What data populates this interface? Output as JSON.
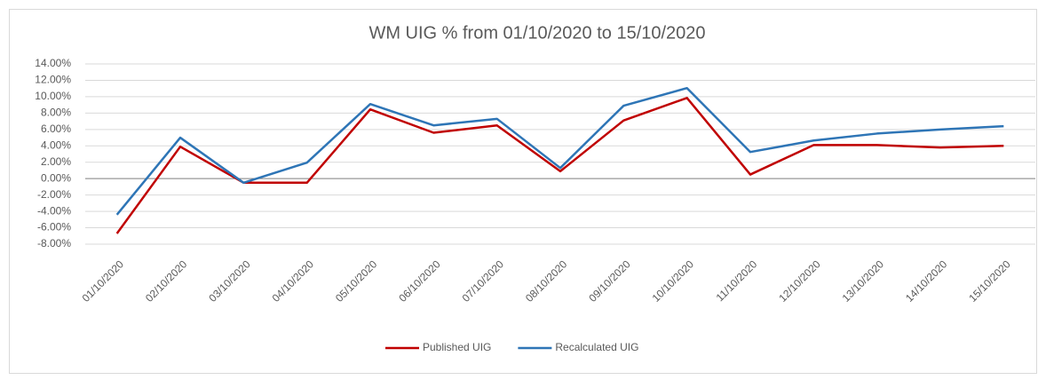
{
  "chart_data": {
    "type": "line",
    "title": "WM UIG % from 01/10/2020 to 15/10/2020",
    "categories": [
      "01/10/2020",
      "02/10/2020",
      "03/10/2020",
      "04/10/2020",
      "05/10/2020",
      "06/10/2020",
      "07/10/2020",
      "08/10/2020",
      "09/10/2020",
      "10/10/2020",
      "11/10/2020",
      "12/10/2020",
      "13/10/2020",
      "14/10/2020",
      "15/10/2020"
    ],
    "series": [
      {
        "name": "Published UIG",
        "color": "#c00000",
        "values": [
          -6.7,
          3.9,
          -0.5,
          -0.5,
          8.45,
          5.6,
          6.5,
          0.9,
          7.1,
          9.85,
          0.5,
          4.1,
          4.1,
          3.8,
          4.0
        ]
      },
      {
        "name": "Recalculated UIG",
        "color": "#2e75b6",
        "values": [
          -4.4,
          5.0,
          -0.5,
          1.95,
          9.1,
          6.5,
          7.3,
          1.3,
          8.9,
          11.05,
          3.25,
          4.65,
          5.5,
          6.0,
          6.4
        ]
      }
    ],
    "ylim": [
      -8,
      14
    ],
    "yticks": [
      {
        "value": -8,
        "label": "-8.00%"
      },
      {
        "value": -6,
        "label": "-6.00%"
      },
      {
        "value": -4,
        "label": "-4.00%"
      },
      {
        "value": -2,
        "label": "-2.00%"
      },
      {
        "value": 0,
        "label": "0.00%"
      },
      {
        "value": 2,
        "label": "2.00%"
      },
      {
        "value": 4,
        "label": "4.00%"
      },
      {
        "value": 6,
        "label": "6.00%"
      },
      {
        "value": 8,
        "label": "8.00%"
      },
      {
        "value": 10,
        "label": "10.00%"
      },
      {
        "value": 12,
        "label": "12.00%"
      },
      {
        "value": 14,
        "label": "14.00%"
      }
    ],
    "grid": true,
    "legend": "bottom"
  }
}
